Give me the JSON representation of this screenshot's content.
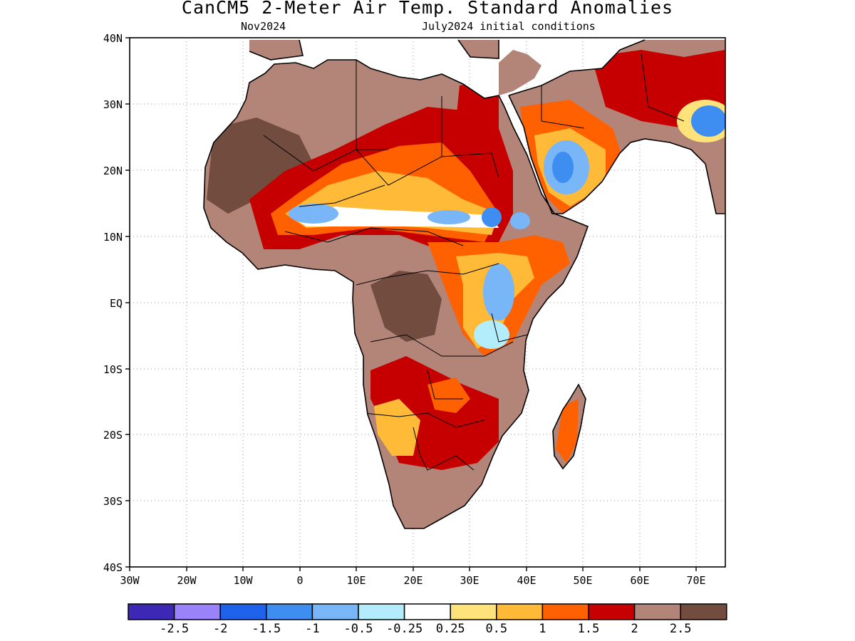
{
  "title": "CanCM5 2-Meter Air Temp. Standard Anomalies",
  "subtitle_left": "Nov2024",
  "subtitle_right": "July2024 initial conditions",
  "lat_labels": [
    "40N",
    "30N",
    "20N",
    "10N",
    "EQ",
    "10S",
    "20S",
    "30S",
    "40S"
  ],
  "lon_labels": [
    "30W",
    "20W",
    "10W",
    "0",
    "10E",
    "20E",
    "30E",
    "40E",
    "50E",
    "60E",
    "70E"
  ],
  "colorbar": {
    "colors": [
      "#3c28b4",
      "#9a83f8",
      "#1d62e8",
      "#3d8ef0",
      "#78b6f8",
      "#b3ecfa",
      "#ffffff",
      "#ffe27a",
      "#ffbb38",
      "#ff6000",
      "#c60000",
      "#b38478",
      "#734c40"
    ],
    "labels": [
      "-2.5",
      "-2",
      "-1.5",
      "-1",
      "-0.5",
      "-0.25",
      "0.25",
      "0.5",
      "1",
      "1.5",
      "2",
      "2.5"
    ]
  }
}
